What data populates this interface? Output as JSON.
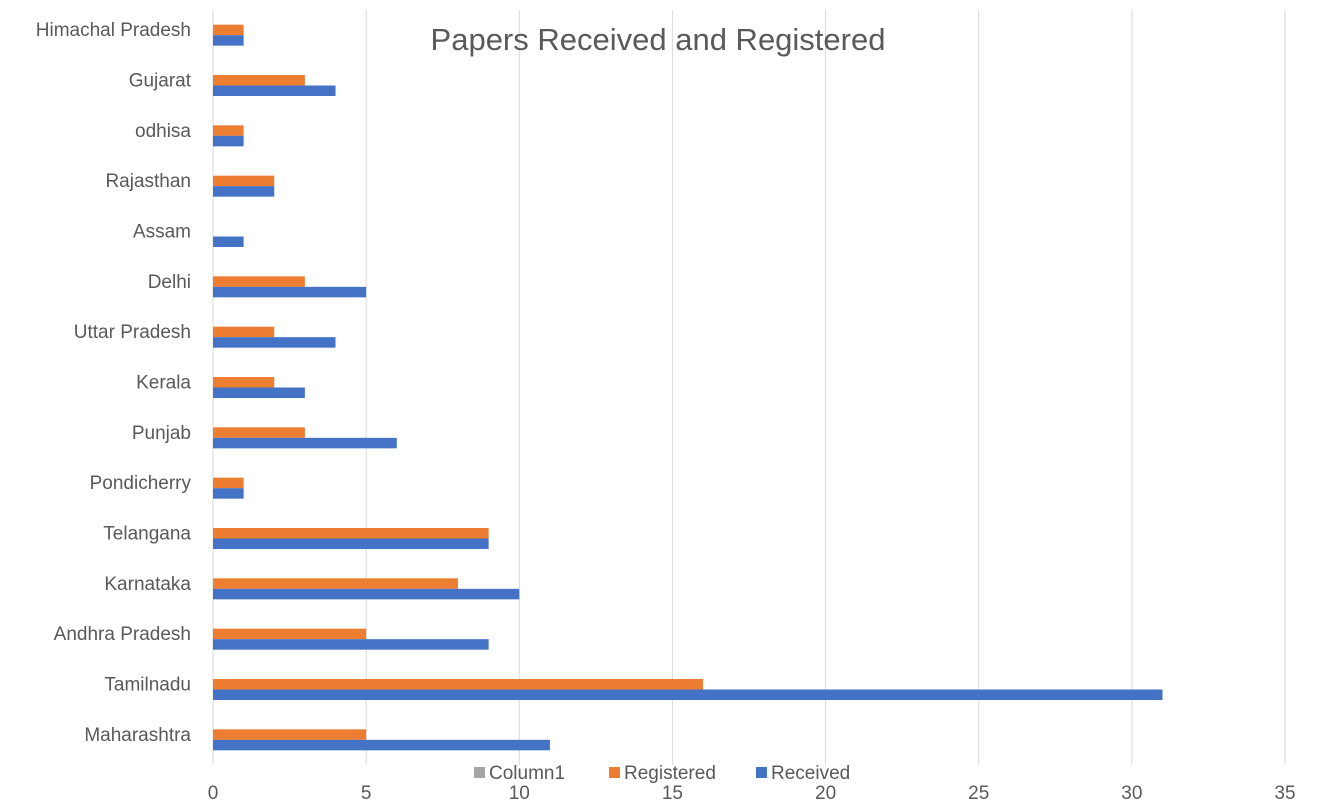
{
  "chart_data": {
    "type": "bar",
    "orientation": "horizontal",
    "title": "Papers Received and Registered",
    "categories": [
      "Maharashtra",
      "Tamilnadu",
      "Andhra Pradesh",
      "Karnataka",
      "Telangana",
      "Pondicherry",
      "Punjab",
      "Kerala",
      "Uttar Pradesh",
      "Delhi",
      "Assam",
      "Rajasthan",
      "odhisa",
      "Gujarat",
      "Himachal Pradesh"
    ],
    "series": [
      {
        "name": "Received",
        "color": "#4472c4",
        "values": [
          11,
          31,
          9,
          10,
          9,
          1,
          6,
          3,
          4,
          5,
          1,
          2,
          1,
          4,
          1
        ]
      },
      {
        "name": "Registered",
        "color": "#ed7d31",
        "values": [
          5,
          16,
          5,
          8,
          9,
          1,
          3,
          2,
          2,
          3,
          0,
          2,
          1,
          3,
          1
        ]
      },
      {
        "name": "Column1",
        "color": "#a5a5a5",
        "values": [
          0,
          0,
          0,
          0,
          0,
          0,
          0,
          0,
          0,
          0,
          0,
          0,
          0,
          0,
          0
        ]
      }
    ],
    "legend_order": [
      "Column1",
      "Registered",
      "Received"
    ],
    "xlim": [
      0,
      35
    ],
    "xticks": [
      0,
      5,
      10,
      15,
      20,
      25,
      30,
      35
    ],
    "grid": true,
    "legend_position": "bottom"
  }
}
